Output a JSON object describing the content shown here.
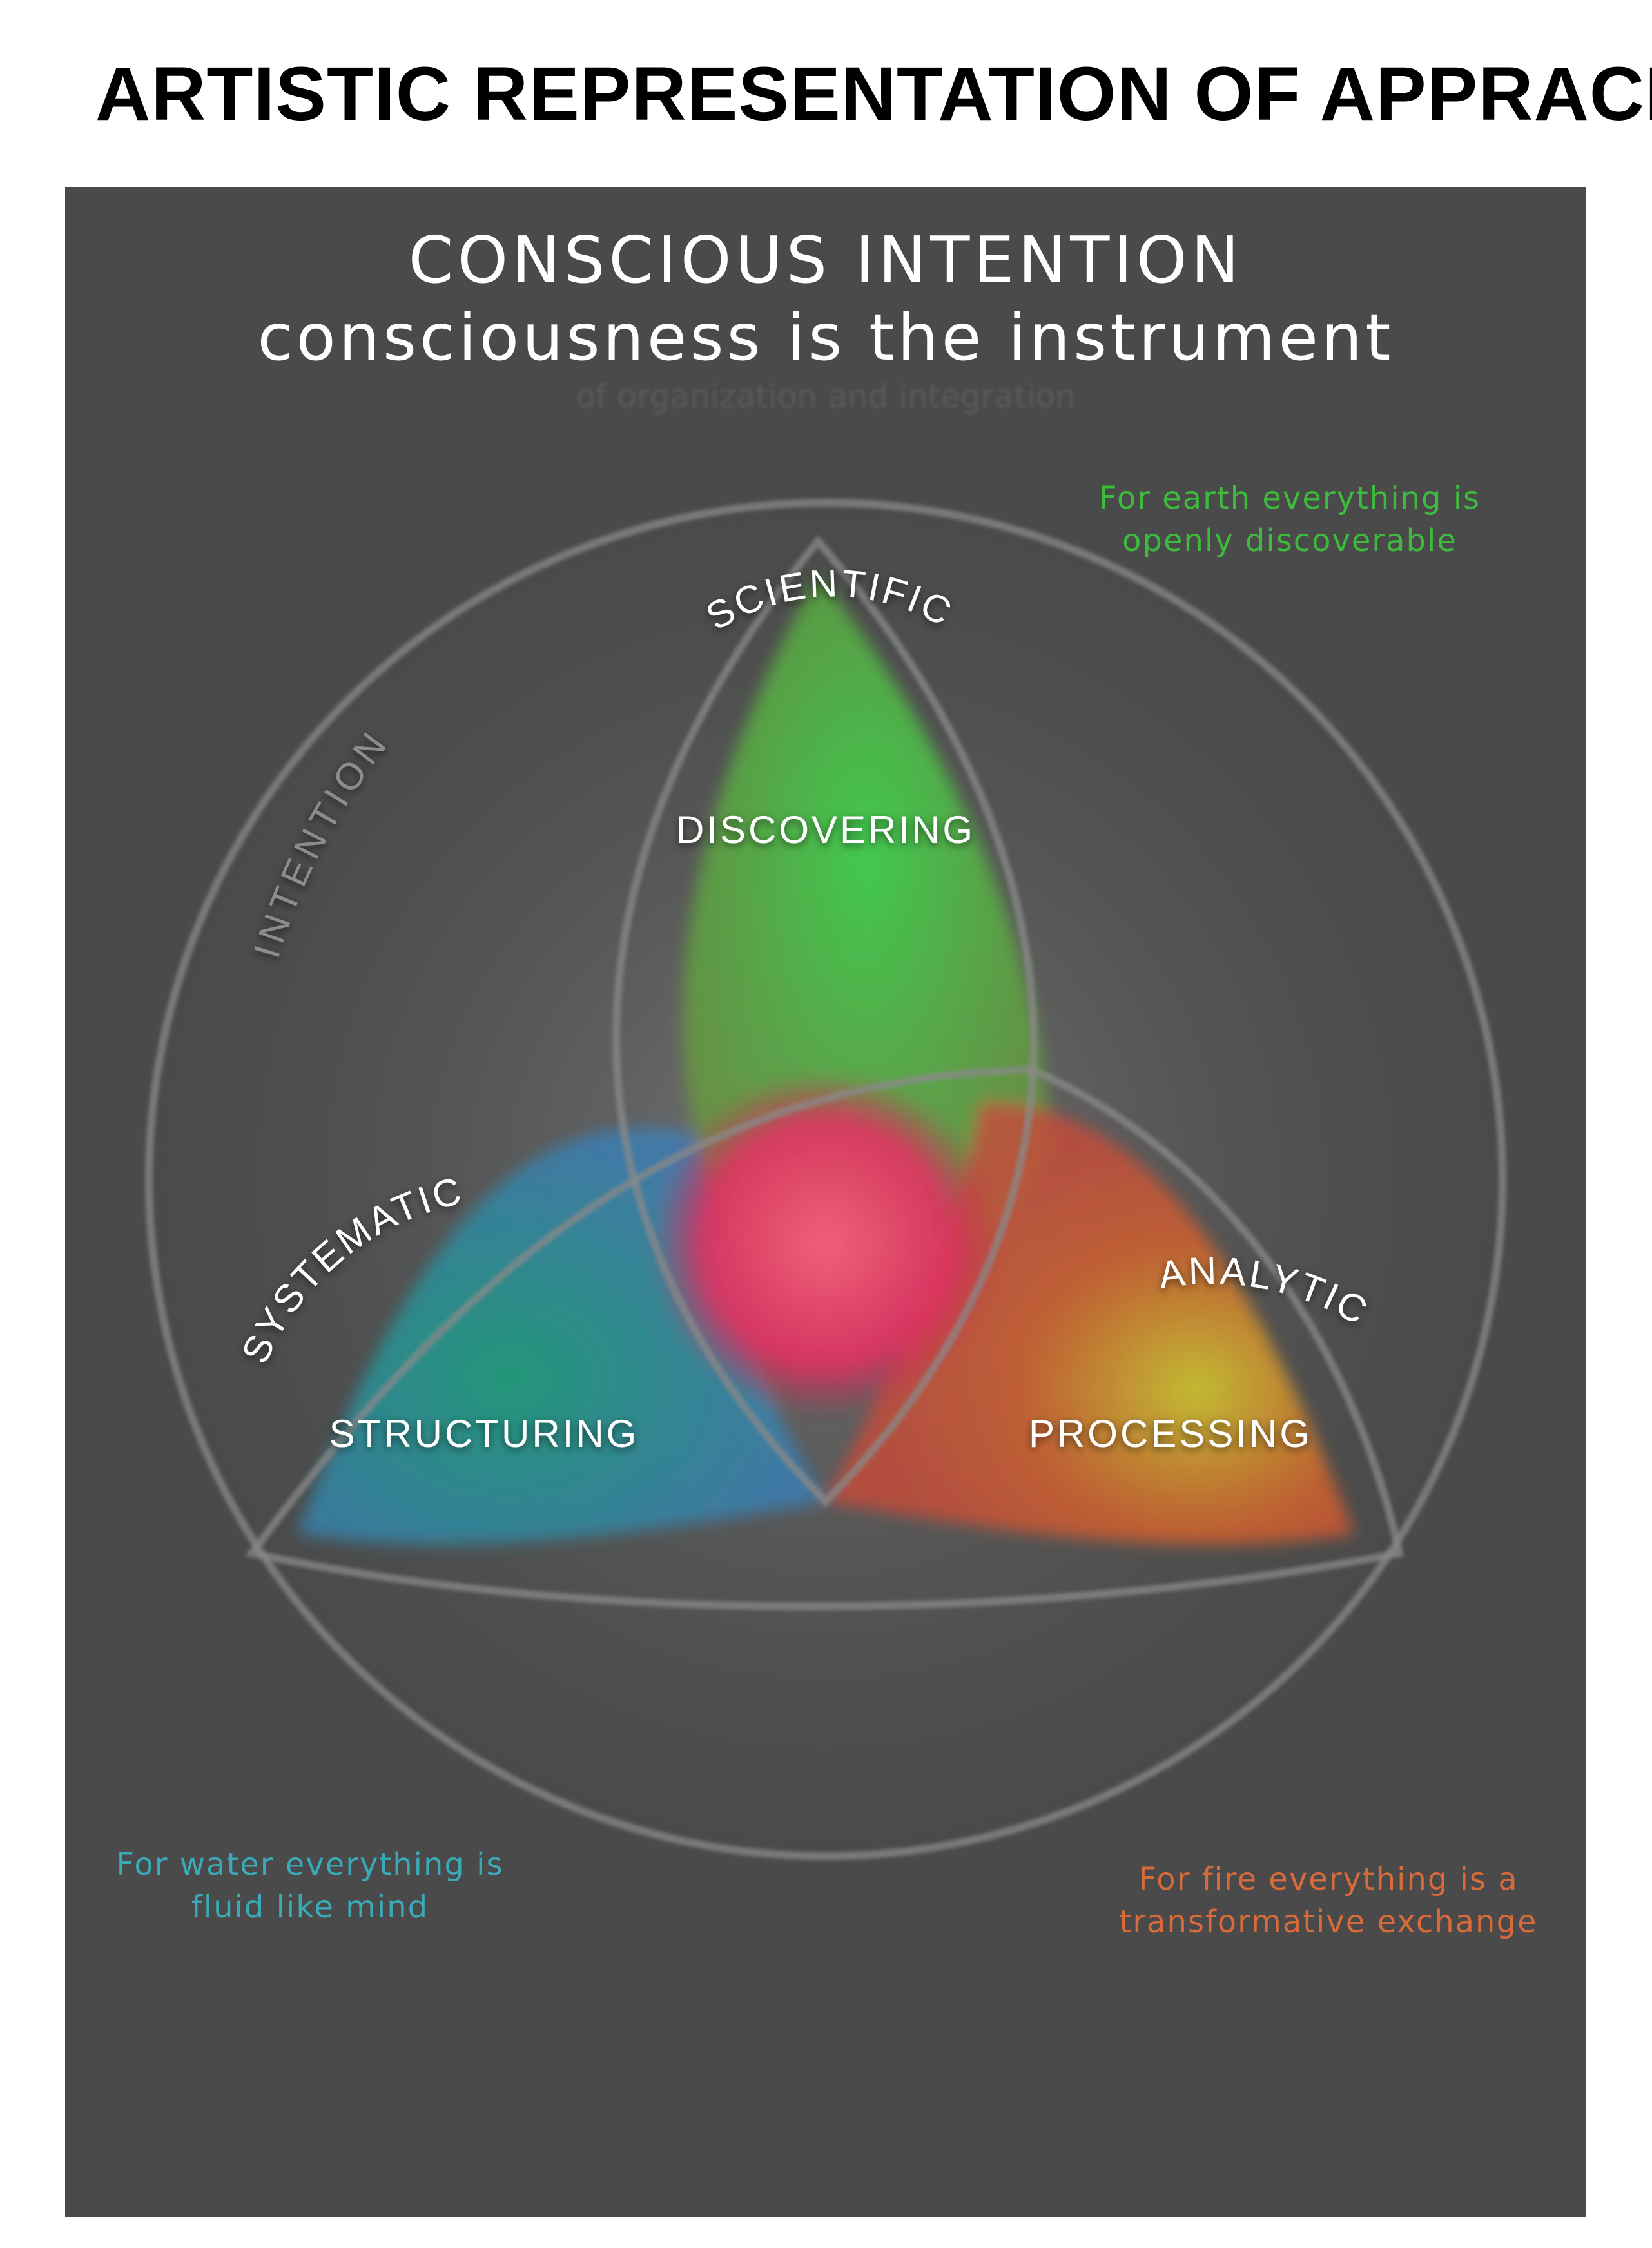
{
  "page": {
    "title": "ARTISTIC REPRESENTATION OF APPRACH"
  },
  "header": {
    "line1": "CONSCIOUS INTENTION",
    "line2": "consciousness is the instrument",
    "line3": "of organization and integration"
  },
  "diagram": {
    "outer_ring_label": "INTENTION",
    "lobes": [
      {
        "arc_label": "SCIENTIFIC",
        "center_label": "DISCOVERING",
        "color": "#33b44a"
      },
      {
        "arc_label": "SYSTEMATIC",
        "center_label": "STRUCTURING",
        "color": "#2e8fb0"
      },
      {
        "arc_label": "ANALYTIC",
        "center_label": "PROCESSING",
        "color": "#d0502e"
      }
    ],
    "core_color": "#e0305e"
  },
  "notes": {
    "earth": {
      "text": "For  earth everything is\nopenly discoverable",
      "color": "#3dbb3d"
    },
    "water": {
      "text": "For water everything is\nfluid like mind",
      "color": "#3aaab8"
    },
    "fire": {
      "text": "For fire everything is a\ntransformative exchange",
      "color": "#d96a3a"
    }
  },
  "colors": {
    "panel_background": "#4a4a4a",
    "ring": "#8a8a8a",
    "title": "#000000"
  }
}
